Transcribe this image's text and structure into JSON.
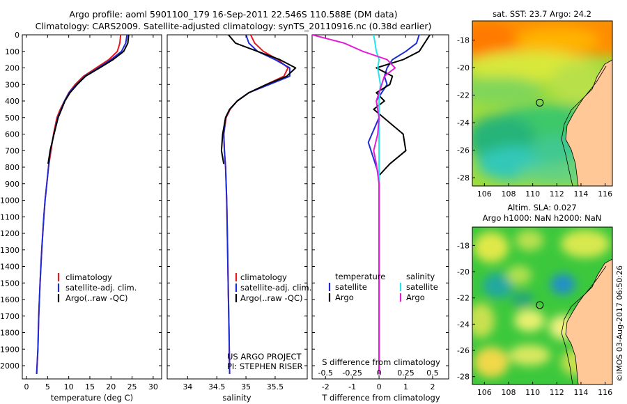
{
  "title": {
    "line1": "Argo profile: aoml 5901100_179 16-Sep-2011 22.546S 110.588E (DM data)",
    "line2": "Climatology: CARS2009. Satellite-adjusted climatology: synTS_20110916.nc (0.38d earlier)"
  },
  "colors": {
    "climatology": "#e8191b",
    "satellite_adj": "#1f2bd6",
    "argo": "#000000",
    "salinity_sat": "#22e6ee",
    "salinity_argo": "#e21ed6",
    "land": "#ffc896"
  },
  "depth_axis": {
    "ylim": [
      0,
      2080
    ],
    "ticks": [
      0,
      100,
      200,
      300,
      400,
      500,
      600,
      700,
      800,
      900,
      1000,
      1100,
      1200,
      1300,
      1400,
      1500,
      1600,
      1700,
      1800,
      1900,
      2000
    ]
  },
  "chart_data": [
    {
      "id": "temperature",
      "type": "line",
      "xlabel": "temperature (deg C)",
      "xlim": [
        -1,
        32
      ],
      "xticks": [
        0,
        5,
        10,
        15,
        20,
        25,
        30
      ],
      "legend": [
        "climatology",
        "satellite-adj. clim.",
        "Argo(..raw -QC)"
      ],
      "series": [
        {
          "name": "climatology",
          "color_key": "climatology",
          "x": [
            22.3,
            22.1,
            21.5,
            19.5,
            16.5,
            13.5,
            11.5,
            10.0,
            9.0,
            8.0,
            7.2,
            6.4,
            5.8,
            5.2,
            4.8,
            4.4,
            4.1,
            3.6,
            3.2,
            2.9,
            2.7,
            2.5,
            2.4
          ],
          "y": [
            0,
            50,
            100,
            150,
            200,
            250,
            300,
            350,
            400,
            450,
            500,
            600,
            700,
            800,
            900,
            1000,
            1100,
            1300,
            1500,
            1700,
            1900,
            2000,
            2050
          ]
        },
        {
          "name": "satellite-adj. clim.",
          "color_key": "satellite_adj",
          "x": [
            23.8,
            23.5,
            22.5,
            20.0,
            17.0,
            13.8,
            11.8,
            10.1,
            9.0,
            8.2,
            7.4,
            6.5,
            5.6,
            5.2,
            4.8,
            4.4,
            4.1,
            3.6,
            3.2,
            2.9,
            2.7,
            2.5,
            2.4
          ],
          "y": [
            0,
            50,
            100,
            150,
            200,
            250,
            300,
            350,
            400,
            450,
            500,
            600,
            700,
            800,
            900,
            1000,
            1100,
            1300,
            1500,
            1700,
            1900,
            2000,
            2050
          ]
        },
        {
          "name": "Argo(..raw -QC)",
          "color_key": "argo",
          "x": [
            24.2,
            24.0,
            23.0,
            20.5,
            17.3,
            14.0,
            12.0,
            10.3,
            9.1,
            8.3,
            7.5,
            6.5,
            5.6,
            5.1
          ],
          "y": [
            0,
            50,
            100,
            150,
            200,
            250,
            300,
            350,
            400,
            450,
            500,
            600,
            700,
            780
          ]
        }
      ]
    },
    {
      "id": "salinity",
      "type": "line",
      "xlabel": "salinity",
      "xlim": [
        33.65,
        36.05
      ],
      "xticks": [
        34,
        34.5,
        35,
        35.5
      ],
      "legend": [
        "climatology",
        "satellite-adj. clim.",
        "Argo(..raw -QC)"
      ],
      "series": [
        {
          "name": "climatology",
          "color_key": "climatology",
          "x": [
            35.08,
            35.15,
            35.3,
            35.55,
            35.72,
            35.65,
            35.35,
            35.05,
            34.85,
            34.73,
            34.66,
            34.62,
            34.63,
            34.65,
            34.66,
            34.67,
            34.68,
            34.69,
            34.7,
            34.71,
            34.72
          ],
          "y": [
            0,
            50,
            100,
            150,
            200,
            250,
            300,
            350,
            400,
            450,
            500,
            600,
            700,
            800,
            900,
            1000,
            1200,
            1400,
            1600,
            1800,
            2050
          ]
        },
        {
          "name": "satellite-adj. clim.",
          "color_key": "satellite_adj",
          "x": [
            35.0,
            35.05,
            35.2,
            35.5,
            35.75,
            35.75,
            35.4,
            35.05,
            34.85,
            34.72,
            34.65,
            34.62,
            34.63,
            34.65,
            34.66,
            34.67,
            34.68,
            34.69,
            34.7,
            34.71,
            34.72
          ],
          "y": [
            0,
            50,
            100,
            150,
            200,
            250,
            300,
            350,
            400,
            450,
            500,
            600,
            700,
            800,
            900,
            1000,
            1200,
            1400,
            1600,
            1800,
            2050
          ]
        },
        {
          "name": "Argo(..raw -QC)",
          "color_key": "argo",
          "x": [
            34.7,
            34.82,
            35.2,
            35.58,
            35.85,
            35.7,
            35.35,
            35.05,
            34.85,
            34.72,
            34.65,
            34.6,
            34.58,
            34.62
          ],
          "y": [
            0,
            50,
            100,
            150,
            200,
            250,
            300,
            350,
            400,
            450,
            500,
            600,
            700,
            780
          ]
        }
      ],
      "annotation": [
        "US ARGO PROJECT",
        "PI: STEPHEN RISER"
      ]
    },
    {
      "id": "differences",
      "type": "line",
      "xlabel": "T difference from climatology",
      "xlabel_top": "S difference from climatology",
      "xlim": [
        -2.5,
        2.6
      ],
      "xticks": [
        -2,
        -1,
        0,
        1,
        2
      ],
      "xticks_s": [
        -0.5,
        -0.25,
        0,
        0.25,
        0.5
      ],
      "legend_titles": [
        "temperature",
        "salinity"
      ],
      "legend": [
        "satellite",
        "Argo",
        "satellite",
        "Argo"
      ],
      "series": [
        {
          "name": "temperature satellite",
          "color_key": "satellite_adj",
          "x": [
            1.5,
            1.4,
            1.0,
            0.5,
            0.3,
            0.2,
            0.3,
            0.1,
            -0.1,
            -0.05,
            0.0,
            -0.4,
            -0.2,
            0.0,
            0.0,
            0.0,
            0.0,
            0.0
          ],
          "y": [
            0,
            50,
            100,
            150,
            200,
            250,
            300,
            350,
            400,
            450,
            500,
            650,
            750,
            850,
            1000,
            1400,
            1800,
            2050
          ]
        },
        {
          "name": "temperature Argo",
          "color_key": "argo",
          "x": [
            1.9,
            1.7,
            1.5,
            0.9,
            -0.1,
            0.5,
            0.4,
            -0.1,
            0.2,
            -0.2,
            0.9,
            1.0,
            0.4,
            0.0,
            0.0,
            0.0
          ],
          "y": [
            0,
            50,
            100,
            150,
            200,
            250,
            300,
            350,
            400,
            450,
            600,
            700,
            780,
            850,
            1000,
            2050
          ]
        },
        {
          "name": "salinity satellite",
          "color_key": "salinity_sat",
          "x": [
            -0.2,
            -0.15,
            -0.1,
            0.0,
            -0.05,
            0.05,
            0.0,
            0.0,
            0.0,
            0.0,
            0.0,
            0.0
          ],
          "y": [
            0,
            50,
            100,
            150,
            200,
            300,
            400,
            500,
            800,
            1200,
            1600,
            2050
          ]
        },
        {
          "name": "salinity Argo",
          "color_key": "salinity_argo",
          "x": [
            -2.5,
            -1.3,
            -0.6,
            0.3,
            0.6,
            0.2,
            0.1,
            -0.1,
            0.0,
            -0.05,
            -0.2,
            -0.1,
            0.0,
            0.0
          ],
          "y": [
            0,
            50,
            100,
            150,
            200,
            250,
            300,
            400,
            500,
            600,
            700,
            780,
            900,
            2050
          ]
        }
      ]
    }
  ],
  "maps": [
    {
      "id": "sst-map",
      "title": [
        "sat. SST: 23.7 Argo: 24.2"
      ],
      "xticks": [
        106,
        108,
        110,
        112,
        114,
        116
      ],
      "yticks": [
        -18,
        -20,
        -22,
        -24,
        -26,
        -28
      ],
      "xlim": [
        105,
        116.6
      ],
      "ylim": [
        -28.6,
        -16.6
      ],
      "marker": {
        "lon": 110.588,
        "lat": -22.546
      }
    },
    {
      "id": "sla-map",
      "title": [
        "Altim. SLA: 0.027",
        "Argo h1000: NaN h2000: NaN"
      ],
      "xticks": [
        106,
        108,
        110,
        112,
        114,
        116
      ],
      "yticks": [
        -18,
        -20,
        -22,
        -24,
        -26,
        -28
      ],
      "xlim": [
        105,
        116.6
      ],
      "ylim": [
        -28.6,
        -16.6
      ],
      "marker": {
        "lon": 110.588,
        "lat": -22.546
      }
    }
  ],
  "stamp": "©IMOS 03-Aug-2017 06:50:26"
}
